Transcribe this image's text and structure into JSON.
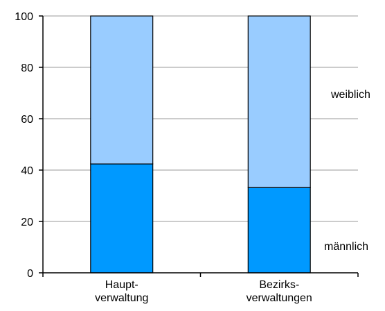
{
  "chart_data": {
    "type": "stacked_bar",
    "categories": [
      "Haupt-\nverwaltung",
      "Bezirks-\nverwaltungen"
    ],
    "series": [
      {
        "name": "männlich",
        "color": "#0099ff",
        "values": [
          42.4,
          33.2
        ]
      },
      {
        "name": "weiblich",
        "color": "#99ccff",
        "values": [
          57.6,
          66.8
        ]
      }
    ],
    "ylim": [
      0,
      100
    ],
    "yticks": [
      0,
      20,
      40,
      60,
      80,
      100
    ],
    "grid": true
  }
}
